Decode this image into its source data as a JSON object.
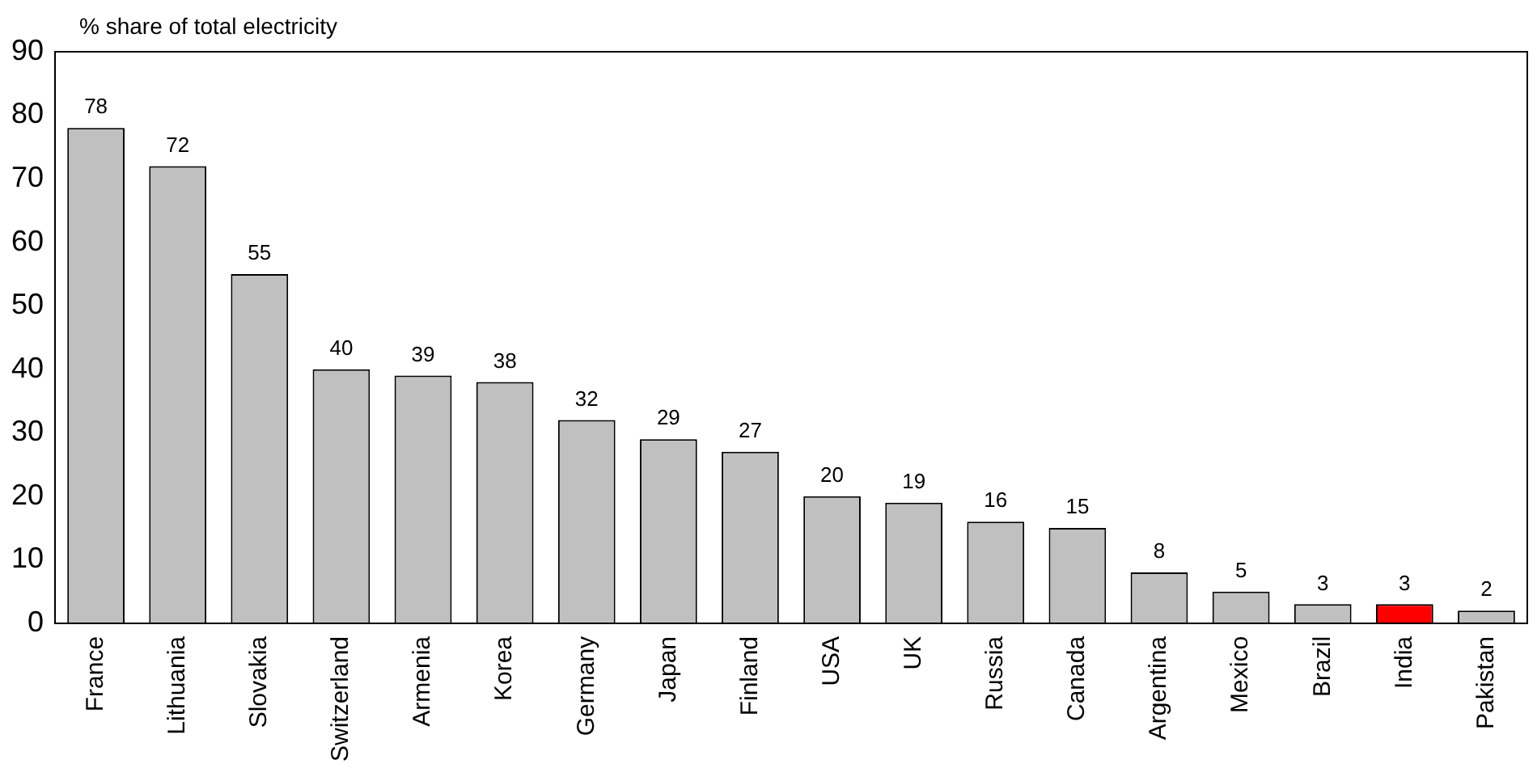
{
  "chart_data": {
    "type": "bar",
    "ylabel": "% share of total electricity",
    "categories": [
      "France",
      "Lithuania",
      "Slovakia",
      "Switzerland",
      "Armenia",
      "Korea",
      "Germany",
      "Japan",
      "Finland",
      "USA",
      "UK",
      "Russia",
      "Canada",
      "Argentina",
      "Mexico",
      "Brazil",
      "India",
      "Pakistan"
    ],
    "values": [
      78,
      72,
      55,
      40,
      39,
      38,
      32,
      29,
      27,
      20,
      19,
      16,
      15,
      8,
      5,
      3,
      3,
      2
    ],
    "colors": [
      "#c0c0c0",
      "#c0c0c0",
      "#c0c0c0",
      "#c0c0c0",
      "#c0c0c0",
      "#c0c0c0",
      "#c0c0c0",
      "#c0c0c0",
      "#c0c0c0",
      "#c0c0c0",
      "#c0c0c0",
      "#c0c0c0",
      "#c0c0c0",
      "#c0c0c0",
      "#c0c0c0",
      "#c0c0c0",
      "#ff0000",
      "#c0c0c0"
    ],
    "ylim": [
      0,
      90
    ],
    "yticks": [
      0,
      10,
      20,
      30,
      40,
      50,
      60,
      70,
      80,
      90
    ],
    "data_labels": true,
    "grid": false,
    "legend": false
  }
}
